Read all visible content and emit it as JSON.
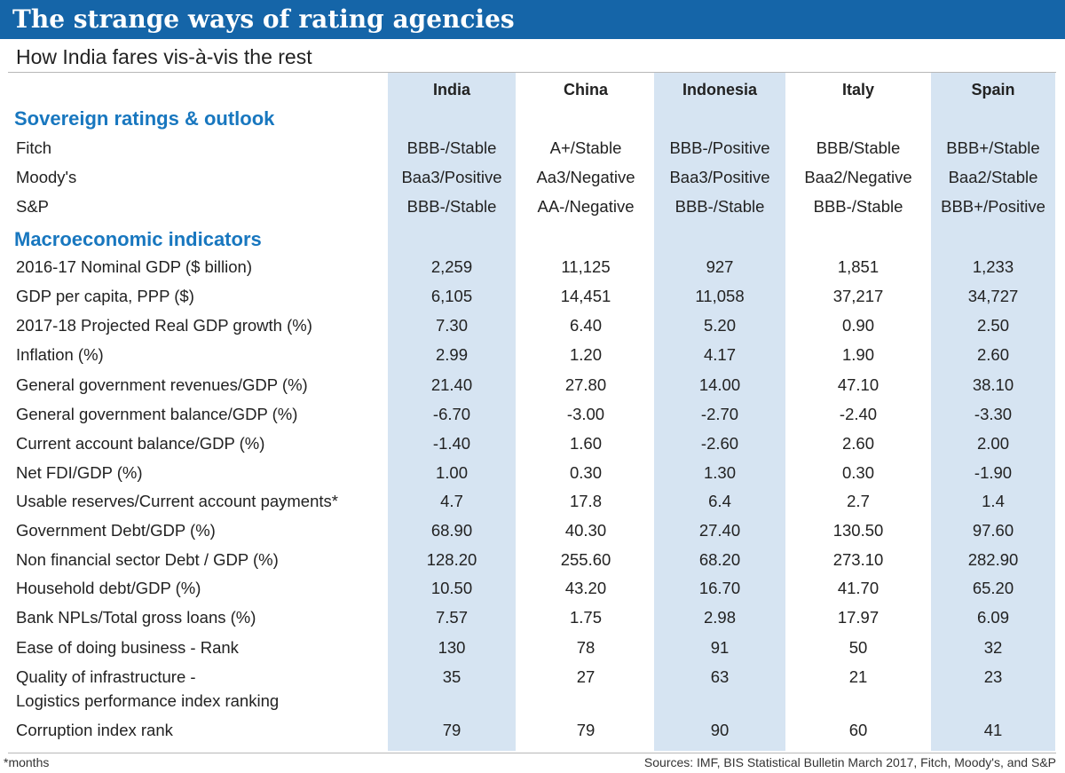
{
  "title": "The strange ways of rating agencies",
  "subtitle": "How India fares vis-à-vis the rest",
  "footnote": "*months",
  "sources": "Sources: IMF, BIS Statistical Bulletin March 2017, Fitch, Moody's, and S&P",
  "colors": {
    "title_bar": "#1565a8",
    "section_heading": "#1877bf",
    "column_shade": "#d6e4f2"
  },
  "chart_data": {
    "type": "table",
    "columns": [
      "India",
      "China",
      "Indonesia",
      "Italy",
      "Spain"
    ],
    "shaded_columns": [
      "India",
      "Indonesia",
      "Spain"
    ],
    "sections": [
      {
        "title": "Sovereign ratings & outlook",
        "rows": [
          {
            "label": [
              "Fitch"
            ],
            "values": [
              "BBB-/Stable",
              "A+/Stable",
              "BBB-/Positive",
              "BBB/Stable",
              "BBB+/Stable"
            ]
          },
          {
            "label": [
              "Moody's"
            ],
            "values": [
              "Baa3/Positive",
              "Aa3/Negative",
              "Baa3/Positive",
              "Baa2/Negative",
              "Baa2/Stable"
            ]
          },
          {
            "label": [
              "S&P"
            ],
            "values": [
              "BBB-/Stable",
              "AA-/Negative",
              "BBB-/Stable",
              "BBB-/Stable",
              "BBB+/Positive"
            ]
          }
        ]
      },
      {
        "title": "Macroeconomic indicators",
        "rows": [
          {
            "label": [
              "2016-17 Nominal GDP ($ billion)"
            ],
            "values": [
              "2,259",
              "11,125",
              "927",
              "1,851",
              "1,233"
            ]
          },
          {
            "label": [
              "GDP per capita, PPP ($)"
            ],
            "values": [
              "6,105",
              "14,451",
              "11,058",
              "37,217",
              "34,727"
            ]
          },
          {
            "label": [
              "2017-18 Projected Real GDP growth (%)"
            ],
            "values": [
              "7.30",
              "6.40",
              "5.20",
              "0.90",
              "2.50"
            ]
          },
          {
            "label": [
              "Inflation (%)"
            ],
            "values": [
              "2.99",
              "1.20",
              "4.17",
              "1.90",
              "2.60"
            ]
          },
          {
            "label": [
              "General government revenues/GDP (%)"
            ],
            "values": [
              "21.40",
              "27.80",
              "14.00",
              "47.10",
              "38.10"
            ]
          },
          {
            "label": [
              "General government balance/GDP (%)"
            ],
            "values": [
              "-6.70",
              "-3.00",
              "-2.70",
              "-2.40",
              "-3.30"
            ]
          },
          {
            "label": [
              "Current account balance/GDP (%)"
            ],
            "values": [
              "-1.40",
              "1.60",
              "-2.60",
              "2.60",
              "2.00"
            ]
          },
          {
            "label": [
              "Net FDI/GDP (%)"
            ],
            "values": [
              "1.00",
              "0.30",
              "1.30",
              "0.30",
              "-1.90"
            ]
          },
          {
            "label": [
              "Usable reserves/Current account payments*"
            ],
            "values": [
              "4.7",
              "17.8",
              "6.4",
              "2.7",
              "1.4"
            ]
          },
          {
            "label": [
              "Government Debt/GDP (%)"
            ],
            "values": [
              "68.90",
              "40.30",
              "27.40",
              "130.50",
              "97.60"
            ]
          },
          {
            "label": [
              "Non financial sector Debt / GDP (%)"
            ],
            "values": [
              "128.20",
              "255.60",
              "68.20",
              "273.10",
              "282.90"
            ]
          },
          {
            "label": [
              "Household debt/GDP (%)"
            ],
            "values": [
              "10.50",
              "43.20",
              "16.70",
              "41.70",
              "65.20"
            ]
          },
          {
            "label": [
              "Bank NPLs/Total gross loans (%)"
            ],
            "values": [
              "7.57",
              "1.75",
              "2.98",
              "17.97",
              "6.09"
            ]
          },
          {
            "label": [
              "Ease of doing business - Rank"
            ],
            "values": [
              "130",
              "78",
              "91",
              "50",
              "32"
            ]
          },
          {
            "label": [
              "Quality of infrastructure -",
              "Logistics performance index ranking"
            ],
            "values": [
              "35",
              "27",
              "63",
              "21",
              "23"
            ]
          },
          {
            "label": [
              "Corruption index rank"
            ],
            "values": [
              "79",
              "79",
              "90",
              "60",
              "41"
            ]
          }
        ]
      }
    ]
  }
}
